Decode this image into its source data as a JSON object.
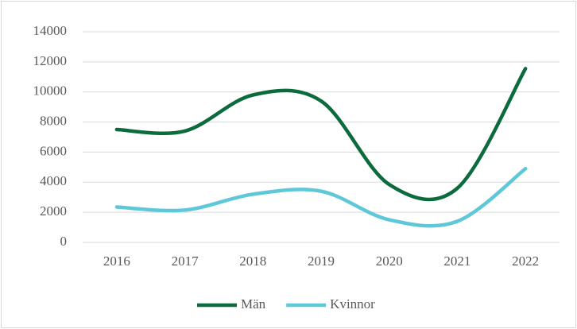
{
  "chart_data": {
    "type": "line",
    "categories": [
      "2016",
      "2017",
      "2018",
      "2019",
      "2020",
      "2021",
      "2022"
    ],
    "series": [
      {
        "name": "Män",
        "color": "#0b6b3c",
        "values": [
          7500,
          7400,
          9800,
          9400,
          3850,
          3600,
          11550
        ]
      },
      {
        "name": "Kvinnor",
        "color": "#5ec8d8",
        "values": [
          2350,
          2150,
          3200,
          3400,
          1500,
          1400,
          4900
        ]
      }
    ],
    "ylim": [
      0,
      14000
    ],
    "yticks": [
      0,
      2000,
      4000,
      6000,
      8000,
      10000,
      12000,
      14000
    ],
    "grid": true,
    "legend": "bottom",
    "smooth": true
  }
}
